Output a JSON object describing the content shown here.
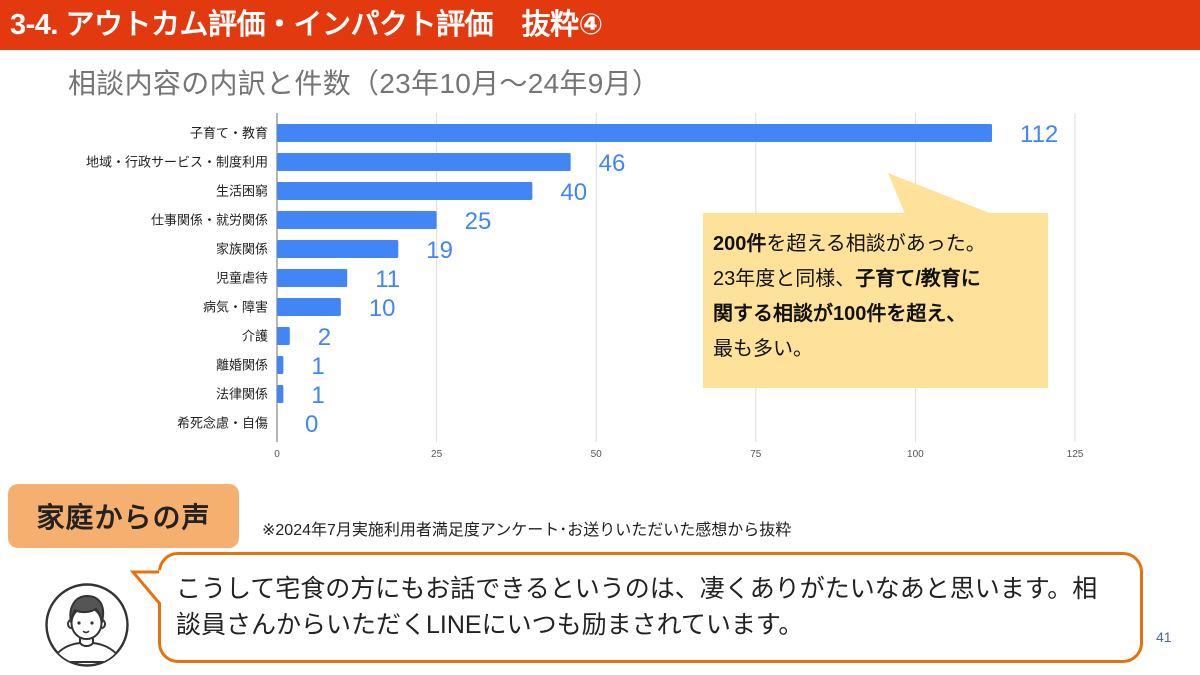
{
  "header": {
    "title": "3-4. アウトカム評価・インパクト評価　抜粋④"
  },
  "subtitle": "相談内容の内訳と件数（23年10月〜24年9月）",
  "chart_data": {
    "type": "bar",
    "orientation": "horizontal",
    "title": "相談内容の内訳と件数（23年10月〜24年9月）",
    "categories": [
      "子育て・教育",
      "地域・行政サービス・制度利用",
      "生活困窮",
      "仕事関係・就労関係",
      "家族関係",
      "児童虐待",
      "病気・障害",
      "介護",
      "離婚関係",
      "法律関係",
      "希死念慮・自傷"
    ],
    "values": [
      112,
      46,
      40,
      25,
      19,
      11,
      10,
      2,
      1,
      1,
      0
    ],
    "data_labels": [
      "112",
      "46",
      "40",
      "25",
      "19",
      "11",
      "10",
      "2",
      "1",
      "1",
      "0"
    ],
    "xlim": [
      0,
      125
    ],
    "xticks": [
      0,
      25,
      50,
      75,
      100,
      125
    ],
    "xtick_labels": [
      "0",
      "25",
      "50",
      "75",
      "100",
      "125"
    ],
    "xlabel": "",
    "ylabel": "",
    "grid": true,
    "legend": "none",
    "bar_color": "#4285F4",
    "label_color": "#4285F4"
  },
  "callout": {
    "lines": [
      [
        {
          "text": "200件",
          "bold": true
        },
        {
          "text": "を超える相談があった。",
          "bold": false
        }
      ],
      [
        {
          "text": "23年度と同様、",
          "bold": false
        },
        {
          "text": "子育て/教育に",
          "bold": true
        }
      ],
      [
        {
          "text": "関する相談が100件を超え、",
          "bold": true
        }
      ],
      [
        {
          "text": "最も多い。",
          "bold": false
        }
      ]
    ]
  },
  "voices": {
    "badge": "家庭からの声",
    "note": "※2024年7月実施利用者満足度アンケート･お送りいただいた感想から抜粋",
    "quote_lines": [
      "こうして宅食の方にもお話できるというのは、凄くありがたいなあと思います。相",
      "談員さんからいただくLINEにいつも励まされています。"
    ],
    "avatar_icon": "person-avatar-icon"
  },
  "page_number": "41",
  "colors": {
    "header_bg": "#E3390F",
    "callout_bg": "#FFE299",
    "badge_bg": "#F5AF6E",
    "bubble_border": "#E8710A",
    "page_number": "#4A6B9A",
    "grid": "#DDDDDD",
    "axis": "#9E9E9E"
  }
}
